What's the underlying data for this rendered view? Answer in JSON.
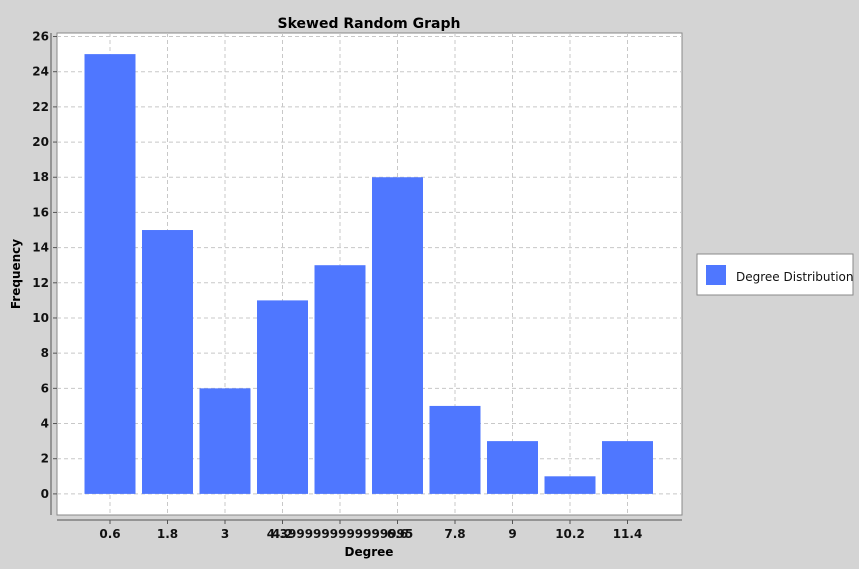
{
  "chart_data": {
    "type": "bar",
    "title": "Skewed Random Graph",
    "xlabel": "Degree",
    "ylabel": "Frequency",
    "categories": [
      "0.6",
      "1.8",
      "3",
      "4.2",
      "4.3999999999999995",
      "6.6",
      "7.8",
      "9",
      "10.2",
      "11.4"
    ],
    "x_tick_labels": [
      "0.6",
      "1.8",
      "3",
      "4.2",
      "4.3999999999999995",
      "6.6",
      "7.8",
      "9",
      "10.2",
      "11.4"
    ],
    "series": [
      {
        "name": "Degree Distribution",
        "values": [
          25,
          15,
          6,
          11,
          13,
          18,
          5,
          3,
          1,
          3
        ]
      }
    ],
    "ylim": [
      -1.2,
      26.2
    ],
    "y_ticks": [
      0,
      2,
      4,
      6,
      8,
      10,
      12,
      14,
      16,
      18,
      20,
      22,
      24,
      26
    ],
    "grid": true,
    "legend_position": "right",
    "bar_color": "#4f77ff",
    "plot_background": "#ffffff",
    "grid_color": "#c8c8c8"
  }
}
